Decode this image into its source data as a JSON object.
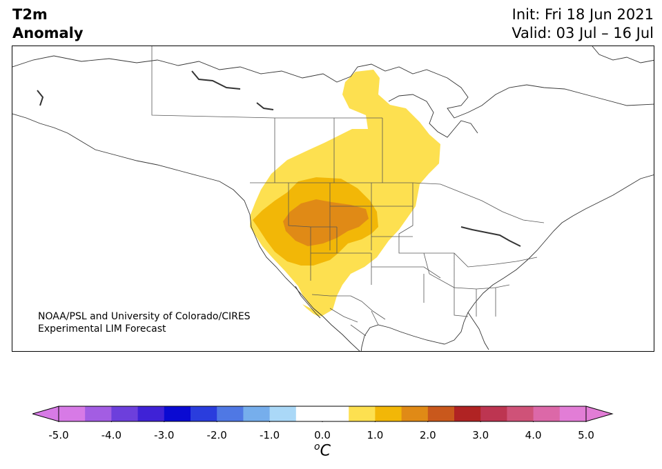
{
  "title": {
    "variable": "T2m",
    "field": "Anomaly",
    "init": "Init: Fri 18 Jun 2021",
    "valid": "Valid: 03 Jul – 16 Jul"
  },
  "credit": {
    "line1": "NOAA/PSL and University of Colorado/CIRES",
    "line2": "Experimental LIM Forecast"
  },
  "colorbar": {
    "units_base": "C",
    "units_sup": "o",
    "ticks": [
      "-5.0",
      "-4.0",
      "-3.0",
      "-2.0",
      "-1.0",
      "0.0",
      "1.0",
      "2.0",
      "3.0",
      "4.0",
      "5.0"
    ],
    "colors": [
      "#d77ae6",
      "#a35de3",
      "#6d3fdc",
      "#3f22d6",
      "#0a0ad2",
      "#2a3ddd",
      "#4f78e4",
      "#76aeec",
      "#aad8f7",
      "#ffffff",
      "#ffffff",
      "#fde050",
      "#f2b707",
      "#e08a16",
      "#c9581c",
      "#b02323",
      "#bd3551",
      "#cf5278",
      "#dc68a8",
      "#e27dd6"
    ],
    "under_color": "#d77ae6",
    "over_color": "#e27dd6"
  },
  "legend_levels": {
    "level_0_5_to_1_0": "#fde050",
    "level_1_0_to_1_5": "#f2b707",
    "level_1_5_to_2_0": "#e08a16"
  }
}
